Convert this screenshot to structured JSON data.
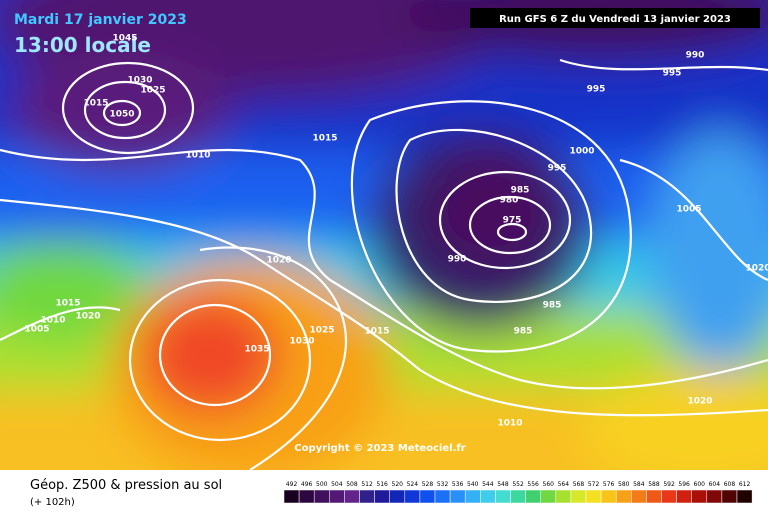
{
  "header": {
    "date": "Mardi 17 janvier 2023",
    "time": "13:00 locale",
    "run": "Run GFS 6 Z du Vendredi 13 janvier 2023"
  },
  "isobar_labels": [
    1045,
    1030,
    1025,
    1015,
    1050,
    1015,
    1010,
    1020,
    1015,
    1010,
    1020,
    1005,
    1025,
    1030,
    1035,
    1015,
    990,
    985,
    980,
    975,
    995,
    1000,
    995,
    995,
    990,
    1005,
    1020,
    985,
    985,
    1010,
    1020
  ],
  "copyright": "Copyright © 2023 Meteociel.fr",
  "footer": {
    "title": "Géop. Z500 & pression au sol",
    "subtitle": "(+ 102h)"
  },
  "scale": {
    "values": [
      492,
      496,
      500,
      504,
      508,
      512,
      516,
      520,
      524,
      528,
      532,
      536,
      540,
      544,
      548,
      552,
      556,
      560,
      564,
      568,
      572,
      576,
      580,
      584,
      588,
      592,
      596,
      600,
      604,
      608,
      612
    ],
    "colors": [
      "#1a0020",
      "#2d0840",
      "#40105c",
      "#521a74",
      "#62248a",
      "#30208a",
      "#1e1a9a",
      "#1426b8",
      "#1038d8",
      "#1050ee",
      "#1a70f6",
      "#2890f8",
      "#34b0f4",
      "#40ccec",
      "#44dcd0",
      "#3cd8a0",
      "#40d070",
      "#70d840",
      "#a8e030",
      "#d8e828",
      "#f4e020",
      "#f8c418",
      "#f8a018",
      "#f47c18",
      "#f05818",
      "#e83818",
      "#d02010",
      "#a81008",
      "#800808",
      "#500404",
      "#200000"
    ]
  }
}
